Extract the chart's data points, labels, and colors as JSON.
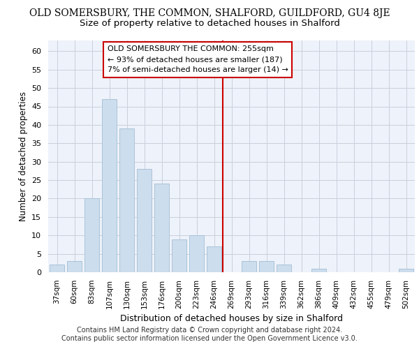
{
  "title": "OLD SOMERSBURY, THE COMMON, SHALFORD, GUILDFORD, GU4 8JE",
  "subtitle": "Size of property relative to detached houses in Shalford",
  "xlabel": "Distribution of detached houses by size in Shalford",
  "ylabel": "Number of detached properties",
  "bar_color": "#ccdded",
  "bar_edgecolor": "#aac4d8",
  "grid_color": "#c8d0dc",
  "bg_color": "#eef2fa",
  "vline_color": "#cc0000",
  "annotation_box_color": "#cc0000",
  "annotation_text": "OLD SOMERSBURY THE COMMON: 255sqm\n← 93% of detached houses are smaller (187)\n7% of semi-detached houses are larger (14) →",
  "categories": [
    "37sqm",
    "60sqm",
    "83sqm",
    "107sqm",
    "130sqm",
    "153sqm",
    "176sqm",
    "200sqm",
    "223sqm",
    "246sqm",
    "269sqm",
    "293sqm",
    "316sqm",
    "339sqm",
    "362sqm",
    "386sqm",
    "409sqm",
    "432sqm",
    "455sqm",
    "479sqm",
    "502sqm"
  ],
  "values": [
    2,
    3,
    20,
    47,
    39,
    28,
    24,
    9,
    10,
    7,
    0,
    3,
    3,
    2,
    0,
    1,
    0,
    0,
    0,
    0,
    1
  ],
  "ylim": [
    0,
    63
  ],
  "yticks": [
    0,
    5,
    10,
    15,
    20,
    25,
    30,
    35,
    40,
    45,
    50,
    55,
    60
  ],
  "footer_line1": "Contains HM Land Registry data © Crown copyright and database right 2024.",
  "footer_line2": "Contains public sector information licensed under the Open Government Licence v3.0."
}
